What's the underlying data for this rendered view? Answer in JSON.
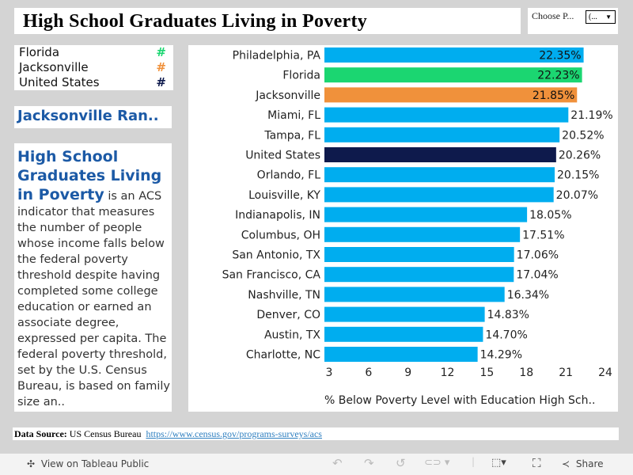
{
  "title": "High School Graduates Living in Poverty",
  "parameter": {
    "label": "Choose P...",
    "value": "(...",
    "arrow_icon": "▼"
  },
  "legend": [
    {
      "label": "Florida",
      "symbol": "#",
      "color": "#1bd671"
    },
    {
      "label": "Jacksonville",
      "symbol": "#",
      "color": "#f0913b"
    },
    {
      "label": "United States",
      "symbol": "#",
      "color": "#0e1a4c"
    }
  ],
  "rank_heading": "Jacksonville Ran..",
  "description": {
    "heading": "High School Graduates Living in Poverty",
    "body": " is an ACS indicator that measures the number of people whose income falls below the federal poverty threshold despite having completed some college education or earned an associate degree, expressed per capita. The federal poverty threshold, set by the U.S. Census Bureau, is based on family size an.."
  },
  "chart_data": {
    "type": "bar",
    "orientation": "horizontal",
    "categories": [
      "Philadelphia, PA",
      "Florida",
      "Jacksonville",
      "Miami, FL",
      "Tampa, FL",
      "United States",
      "Orlando, FL",
      "Louisville, KY",
      "Indianapolis, IN",
      "Columbus, OH",
      "San Antonio, TX",
      "San Francisco, CA",
      "Nashville, TN",
      "Denver, CO",
      "Austin, TX",
      "Charlotte, NC"
    ],
    "values": [
      22.35,
      22.23,
      21.85,
      21.19,
      20.52,
      20.26,
      20.15,
      20.07,
      18.05,
      17.51,
      17.06,
      17.04,
      16.34,
      14.83,
      14.7,
      14.29
    ],
    "value_labels": [
      "22.35%",
      "22.23%",
      "21.85%",
      "21.19%",
      "20.52%",
      "20.26%",
      "20.15%",
      "20.07%",
      "18.05%",
      "17.51%",
      "17.06%",
      "17.04%",
      "16.34%",
      "14.83%",
      "14.70%",
      "14.29%"
    ],
    "colors": [
      "#00adef",
      "#1bd671",
      "#f0913b",
      "#00adef",
      "#00adef",
      "#0e1a4c",
      "#00adef",
      "#00adef",
      "#00adef",
      "#00adef",
      "#00adef",
      "#00adef",
      "#00adef",
      "#00adef",
      "#00adef",
      "#00adef"
    ],
    "xlabel": "% Below Poverty Level with Education High Sch..",
    "xticks": [
      3,
      6,
      9,
      12,
      15,
      18,
      21,
      24
    ],
    "xlim": [
      2.64,
      24.9
    ],
    "grid": false
  },
  "source": {
    "label": "Data Source:",
    "text": "US Census Bureau",
    "link": "https://www.census.gov/programs-surveys/acs"
  },
  "toolbar": {
    "view_label": "View on Tableau Public",
    "share_label": "Share"
  }
}
